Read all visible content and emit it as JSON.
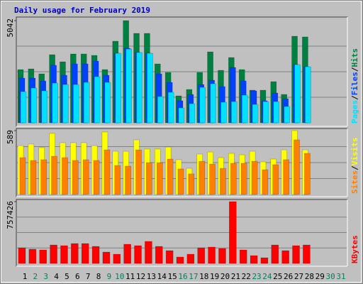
{
  "chart_data": [
    {
      "type": "bar",
      "title": "Daily usage for February 2019",
      "ylim": [
        0,
        5042
      ],
      "yticks": [
        5042
      ],
      "legend_separator": "/",
      "series": [
        {
          "name": "Hits",
          "color": "#008040",
          "values": [
            2626,
            2661,
            2416,
            3361,
            3011,
            3396,
            3396,
            3326,
            2626,
            4027,
            5042,
            4412,
            4412,
            2906,
            2486,
            1330,
            1646,
            2486,
            3501,
            2591,
            3221,
            2626,
            1611,
            1611,
            2031,
            1401,
            4272,
            4237,
            null,
            null,
            null
          ]
        },
        {
          "name": "Files",
          "color": "#0040ff",
          "values": [
            2206,
            2206,
            2066,
            2836,
            2346,
            2906,
            2906,
            3046,
            2346,
            3431,
            3676,
            3466,
            3431,
            2416,
            1996,
            1085,
            1401,
            1891,
            2101,
            1786,
            2731,
            2066,
            1576,
            1085,
            1471,
            1190,
            2871,
            2766,
            null,
            null,
            null
          ]
        },
        {
          "name": "Pages",
          "color": "#00e0ff",
          "values": [
            1540,
            1716,
            1576,
            1961,
            1891,
            1891,
            1996,
            2276,
            1996,
            3431,
            3640,
            3466,
            3431,
            1296,
            1506,
            735,
            945,
            1751,
            1926,
            1015,
            1050,
            1366,
            910,
            1050,
            1050,
            805,
            2871,
            2766,
            null,
            null,
            null
          ]
        }
      ]
    },
    {
      "type": "bar",
      "ylim": [
        0,
        589
      ],
      "yticks": [
        589
      ],
      "legend_separator": "/",
      "series": [
        {
          "name": "Visits",
          "color": "#ffff00",
          "values": [
            451,
            465,
            432,
            563,
            478,
            478,
            478,
            451,
            576,
            399,
            399,
            504,
            419,
            419,
            438,
            321,
            242,
            373,
            392,
            340,
            379,
            366,
            399,
            301,
            327,
            412,
            589,
            412,
            null,
            null,
            null
          ]
        },
        {
          "name": "Sites",
          "color": "#ff8000",
          "values": [
            340,
            314,
            321,
            353,
            340,
            314,
            321,
            314,
            412,
            268,
            262,
            412,
            294,
            294,
            327,
            236,
            190,
            307,
            281,
            242,
            288,
            288,
            307,
            229,
            275,
            321,
            504,
            379,
            null,
            null,
            null
          ]
        }
      ]
    },
    {
      "type": "bar",
      "ylim": [
        0,
        757426
      ],
      "yticks": [
        757426
      ],
      "categories": [
        "1",
        "2",
        "3",
        "4",
        "5",
        "6",
        "7",
        "8",
        "9",
        "10",
        "11",
        "12",
        "13",
        "14",
        "15",
        "16",
        "17",
        "18",
        "19",
        "20",
        "21",
        "22",
        "23",
        "24",
        "25",
        "26",
        "27",
        "28",
        "29",
        "30",
        "31"
      ],
      "category_colors": [
        "#000000",
        "#008060",
        "#008060",
        "#000000",
        "#000000",
        "#000000",
        "#000000",
        "#000000",
        "#008060",
        "#008060",
        "#000000",
        "#000000",
        "#000000",
        "#000000",
        "#000000",
        "#008060",
        "#008060",
        "#000000",
        "#000000",
        "#000000",
        "#000000",
        "#000000",
        "#008060",
        "#008060",
        "#000000",
        "#000000",
        "#000000",
        "#000000",
        "#000000",
        "#008060",
        "#008060"
      ],
      "series": [
        {
          "name": "KBytes",
          "color": "#ff0000",
          "values": [
            191531,
            174121,
            165418,
            226356,
            217650,
            243768,
            243768,
            208944,
            139296,
            113178,
            235062,
            217650,
            269886,
            208944,
            156708,
            78354,
            113178,
            191531,
            200238,
            182826,
            757426,
            165418,
            95766,
            69648,
            226356,
            156708,
            217650,
            226356,
            null,
            null,
            null
          ]
        }
      ]
    }
  ]
}
